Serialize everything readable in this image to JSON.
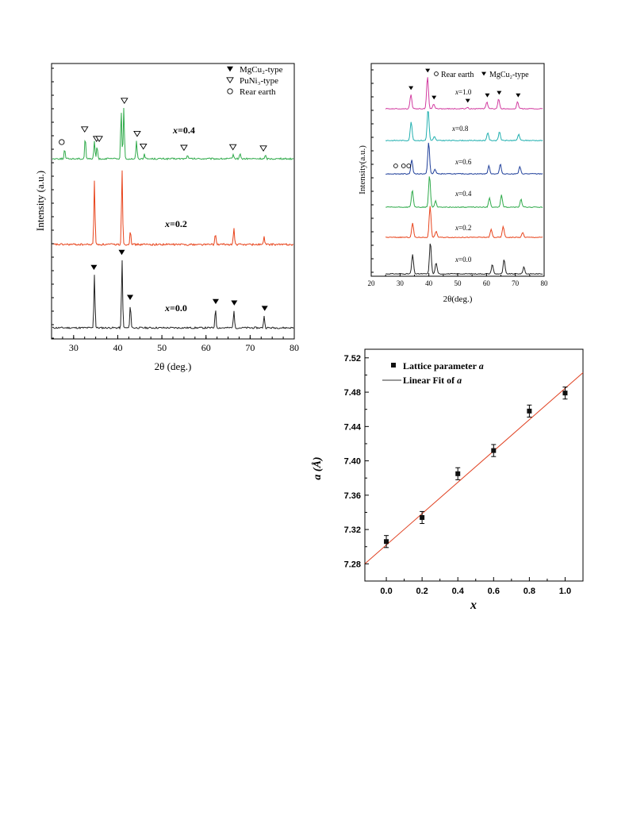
{
  "chart_data": [
    {
      "type": "line",
      "xlabel": "2θ (deg.)",
      "ylabel": "Intensity (a.u.)",
      "xlim": [
        25,
        80
      ],
      "xticks": [
        "30",
        "40",
        "50",
        "60",
        "70",
        "80"
      ],
      "legend": [
        {
          "symbol": "▼",
          "label": "MgCu₂-type"
        },
        {
          "symbol": "▽",
          "label": "PuNi₃-type"
        },
        {
          "symbol": "○",
          "label": "Rear earth"
        }
      ],
      "series": [
        {
          "name": "x=0.0",
          "color": "#222222",
          "peaks": [
            [
              34.6,
              0.78
            ],
            [
              40.9,
              1.0
            ],
            [
              42.8,
              0.34
            ],
            [
              62.2,
              0.28
            ],
            [
              66.4,
              0.26
            ],
            [
              73.3,
              0.18
            ]
          ],
          "markers": [
            [
              34.6,
              "mgcu2"
            ],
            [
              40.9,
              "mgcu2"
            ],
            [
              42.8,
              "mgcu2"
            ],
            [
              62.2,
              "mgcu2"
            ],
            [
              66.4,
              "mgcu2"
            ],
            [
              73.3,
              "mgcu2"
            ]
          ]
        },
        {
          "name": "x=0.2",
          "color": "#e8441c",
          "peaks": [
            [
              34.6,
              0.85
            ],
            [
              40.9,
              1.0
            ],
            [
              42.8,
              0.2
            ],
            [
              62.2,
              0.15
            ],
            [
              66.4,
              0.22
            ],
            [
              73.3,
              0.1
            ]
          ],
          "markers": []
        },
        {
          "name": "x=0.4",
          "color": "#2faa4a",
          "peaks": [
            [
              27.8,
              0.15
            ],
            [
              32.5,
              0.35
            ],
            [
              34.6,
              0.28
            ],
            [
              35.2,
              0.2
            ],
            [
              40.7,
              0.75
            ],
            [
              41.3,
              0.8
            ],
            [
              44.2,
              0.28
            ],
            [
              46.0,
              0.08
            ],
            [
              55.8,
              0.06
            ],
            [
              66.3,
              0.07
            ],
            [
              67.8,
              0.09
            ],
            [
              73.6,
              0.05
            ]
          ],
          "markers": [
            [
              27.3,
              "rare"
            ],
            [
              32.5,
              "puni3"
            ],
            [
              35.2,
              "puni3"
            ],
            [
              35.8,
              "puni3"
            ],
            [
              41.5,
              "puni3"
            ],
            [
              44.4,
              "puni3"
            ],
            [
              45.8,
              "puni3"
            ],
            [
              55.0,
              "puni3"
            ],
            [
              66.1,
              "puni3"
            ],
            [
              73.0,
              "puni3"
            ]
          ]
        }
      ]
    },
    {
      "type": "line",
      "xlabel": "2θ(deg.)",
      "ylabel": "Intensity(a.u.)",
      "xlim": [
        20,
        80
      ],
      "xticks": [
        "20",
        "30",
        "40",
        "50",
        "60",
        "70",
        "80"
      ],
      "legend": [
        {
          "symbol": "○",
          "label": "Rear earth"
        },
        {
          "symbol": "▼",
          "label": "MgCu₂-type"
        }
      ],
      "series": [
        {
          "name": "x=0.0",
          "color": "#222222",
          "peaks": [
            [
              34.4,
              0.6
            ],
            [
              40.6,
              1.0
            ],
            [
              42.6,
              0.35
            ],
            [
              62.2,
              0.3
            ],
            [
              66.3,
              0.45
            ],
            [
              73.2,
              0.22
            ]
          ],
          "markers": []
        },
        {
          "name": "x=0.2",
          "color": "#e8441c",
          "peaks": [
            [
              34.4,
              0.45
            ],
            [
              40.5,
              1.0
            ],
            [
              42.6,
              0.2
            ],
            [
              61.8,
              0.25
            ],
            [
              66.0,
              0.35
            ],
            [
              72.8,
              0.15
            ]
          ],
          "markers": []
        },
        {
          "name": "x=0.4",
          "color": "#2faa4a",
          "peaks": [
            [
              34.3,
              0.55
            ],
            [
              40.3,
              1.0
            ],
            [
              42.4,
              0.2
            ],
            [
              61.2,
              0.3
            ],
            [
              65.4,
              0.38
            ],
            [
              72.2,
              0.25
            ]
          ],
          "markers": []
        },
        {
          "name": "x=0.6",
          "color": "#1f3f9a",
          "peaks": [
            [
              34.1,
              0.45
            ],
            [
              40.0,
              1.0
            ],
            [
              42.2,
              0.15
            ],
            [
              61.0,
              0.25
            ],
            [
              65.0,
              0.3
            ],
            [
              71.8,
              0.22
            ]
          ],
          "markers": [
            [
              28.5,
              "rare"
            ],
            [
              31.2,
              "rare"
            ],
            [
              33.0,
              "rare"
            ]
          ]
        },
        {
          "name": "x=0.8",
          "color": "#22b0b0",
          "peaks": [
            [
              33.9,
              0.6
            ],
            [
              39.8,
              1.0
            ],
            [
              42.0,
              0.12
            ],
            [
              60.6,
              0.25
            ],
            [
              64.7,
              0.28
            ],
            [
              71.4,
              0.2
            ]
          ],
          "markers": []
        },
        {
          "name": "x=1.0",
          "color": "#d23ca0",
          "peaks": [
            [
              33.8,
              0.45
            ],
            [
              39.6,
              1.0
            ],
            [
              41.8,
              0.15
            ],
            [
              53.5,
              0.05
            ],
            [
              60.3,
              0.22
            ],
            [
              64.4,
              0.3
            ],
            [
              71.0,
              0.22
            ]
          ],
          "markers": [
            [
              33.8,
              "mgcu2"
            ],
            [
              39.6,
              "mgcu2"
            ],
            [
              41.8,
              "mgcu2"
            ],
            [
              53.5,
              "mgcu2"
            ],
            [
              60.3,
              "mgcu2"
            ],
            [
              64.4,
              "mgcu2"
            ],
            [
              71.0,
              "mgcu2"
            ]
          ]
        }
      ]
    },
    {
      "type": "scatter",
      "xlabel": "x",
      "ylabel": "a (Å)",
      "xlim": [
        -0.12,
        1.1
      ],
      "ylim": [
        7.26,
        7.53
      ],
      "xticks": [
        "0.0",
        "0.2",
        "0.4",
        "0.6",
        "0.8",
        "1.0"
      ],
      "yticks": [
        "7.28",
        "7.32",
        "7.36",
        "7.40",
        "7.44",
        "7.48",
        "7.52"
      ],
      "legend": [
        {
          "symbol": "■",
          "label": "Lattice parameter a"
        },
        {
          "symbol": "—",
          "label": "Linear Fit of a"
        }
      ],
      "points": [
        {
          "x": 0.0,
          "y": 7.306,
          "err": 0.007
        },
        {
          "x": 0.2,
          "y": 7.334,
          "err": 0.007
        },
        {
          "x": 0.4,
          "y": 7.385,
          "err": 0.007
        },
        {
          "x": 0.6,
          "y": 7.412,
          "err": 0.007
        },
        {
          "x": 0.8,
          "y": 7.458,
          "err": 0.007
        },
        {
          "x": 1.0,
          "y": 7.479,
          "err": 0.007
        }
      ],
      "fit": {
        "slope": 0.1825,
        "intercept": 7.302,
        "color": "#e04020"
      }
    }
  ]
}
